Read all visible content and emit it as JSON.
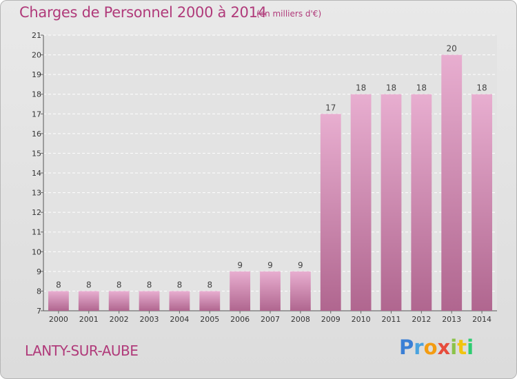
{
  "header": {
    "title": "Charges de Personnel 2000 à 2014",
    "subtitle": "(en milliers d'€)"
  },
  "footer": {
    "commune": "LANTY-SUR-AUBE",
    "logo_letters": [
      {
        "char": "P",
        "color": "#3a7fd5"
      },
      {
        "char": "r",
        "color": "#4aa3df"
      },
      {
        "char": "o",
        "color": "#f39c12"
      },
      {
        "char": "x",
        "color": "#e74c3c"
      },
      {
        "char": "i",
        "color": "#8bc34a"
      },
      {
        "char": "t",
        "color": "#f1c40f"
      },
      {
        "char": "i",
        "color": "#2ecc71"
      }
    ]
  },
  "colors": {
    "bar_top": "#e8aed0",
    "bar_bottom": "#b0668f",
    "title": "#b03a7a"
  },
  "chart_data": {
    "type": "bar",
    "title": "Charges de Personnel 2000 à 2014",
    "subtitle": "(en milliers d'€)",
    "categories": [
      "2000",
      "2001",
      "2002",
      "2003",
      "2004",
      "2005",
      "2006",
      "2007",
      "2008",
      "2009",
      "2010",
      "2011",
      "2012",
      "2013",
      "2014"
    ],
    "values": [
      8,
      8,
      8,
      8,
      8,
      8,
      9,
      9,
      9,
      17,
      18,
      18,
      18,
      20,
      18
    ],
    "ylim": [
      7,
      21
    ],
    "yticks": [
      7,
      8,
      9,
      10,
      11,
      12,
      13,
      14,
      15,
      16,
      17,
      18,
      19,
      20,
      21
    ],
    "grid": true,
    "legend": "none"
  }
}
